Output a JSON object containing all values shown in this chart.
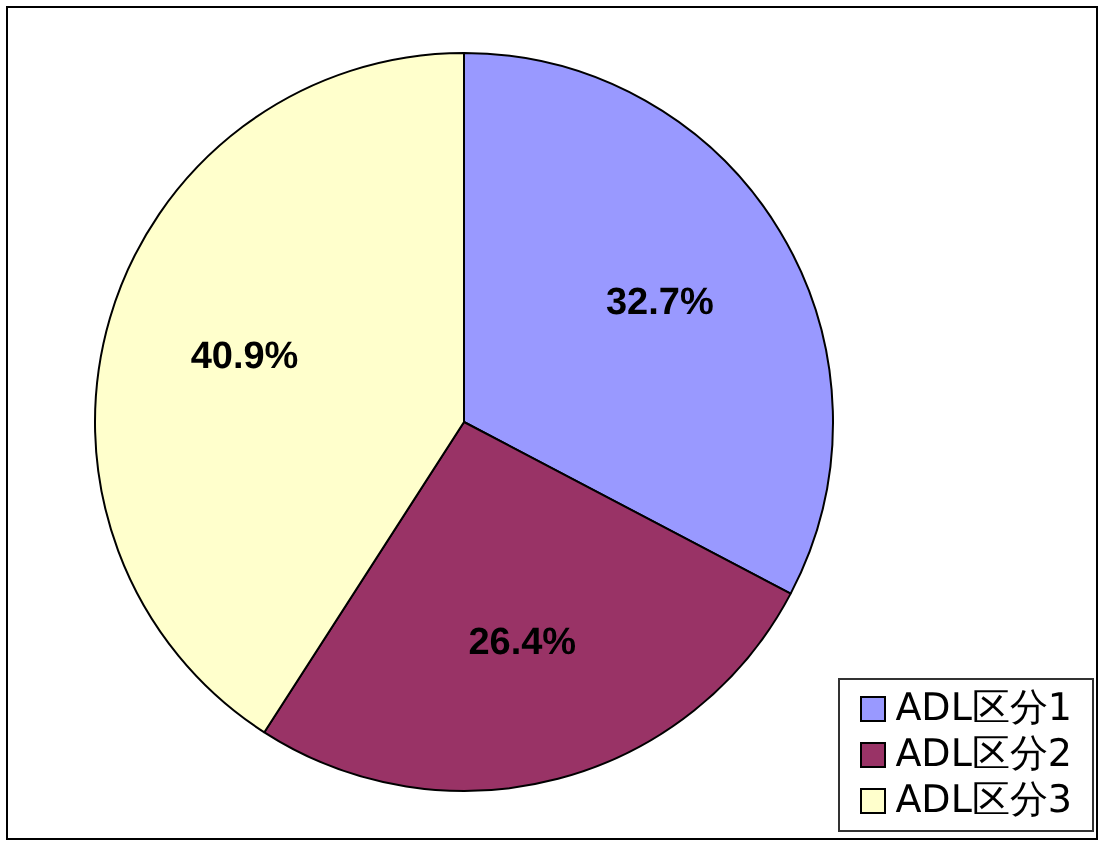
{
  "chart_data": {
    "type": "pie",
    "categories": [
      "ADL区分1",
      "ADL区分2",
      "ADL区分3"
    ],
    "values": [
      32.7,
      26.4,
      40.9
    ],
    "colors": [
      "#9999ff",
      "#993366",
      "#ffffcc"
    ],
    "value_labels": [
      "32.7%",
      "26.4%",
      "40.9%"
    ],
    "legend": "bottom right"
  }
}
